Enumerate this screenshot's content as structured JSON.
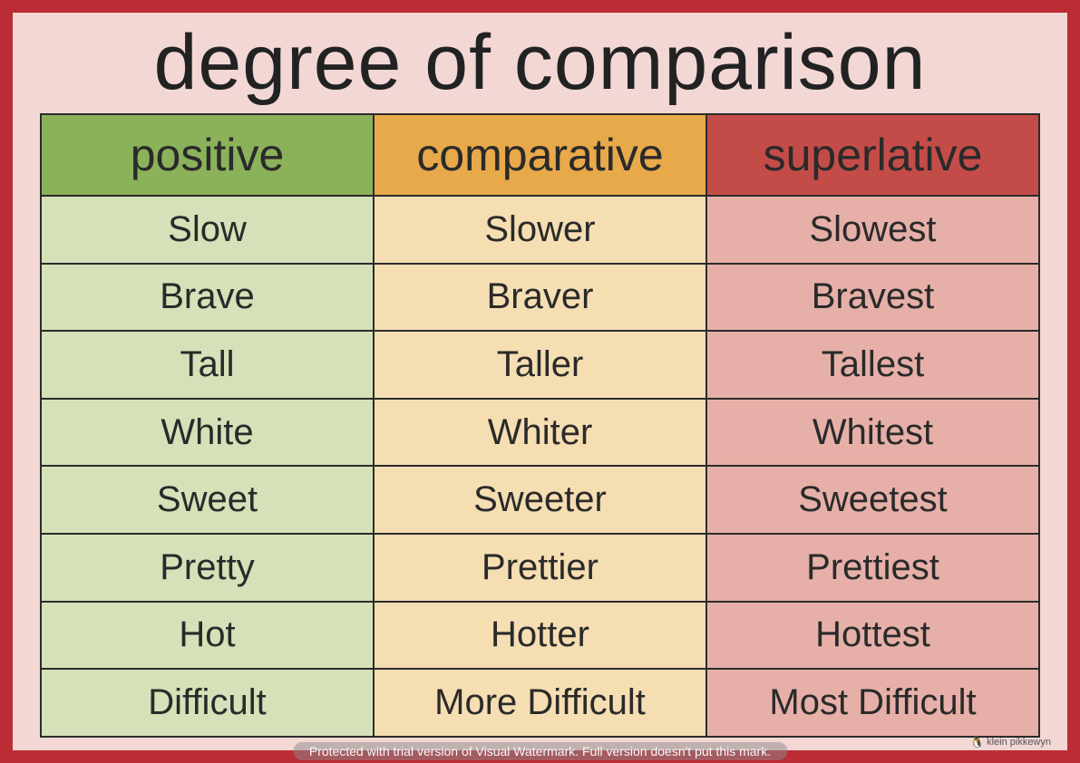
{
  "title": "degree of comparison",
  "columns": {
    "positive": {
      "label": "positive",
      "header_bg": "#8bb25a",
      "cell_bg": "#d5e1b8"
    },
    "comparative": {
      "label": "comparative",
      "header_bg": "#e8a94a",
      "cell_bg": "#f6deb3"
    },
    "superlative": {
      "label": "superlative",
      "header_bg": "#c44c48",
      "cell_bg": "#e6b0a8"
    }
  },
  "rows": [
    {
      "positive": "Slow",
      "comparative": "Slower",
      "superlative": "Slowest"
    },
    {
      "positive": "Brave",
      "comparative": "Braver",
      "superlative": "Bravest"
    },
    {
      "positive": "Tall",
      "comparative": "Taller",
      "superlative": "Tallest"
    },
    {
      "positive": "White",
      "comparative": "Whiter",
      "superlative": "Whitest"
    },
    {
      "positive": "Sweet",
      "comparative": "Sweeter",
      "superlative": "Sweetest"
    },
    {
      "positive": "Pretty",
      "comparative": "Prettier",
      "superlative": "Prettiest"
    },
    {
      "positive": "Hot",
      "comparative": "Hotter",
      "superlative": "Hottest"
    },
    {
      "positive": "Difficult",
      "comparative": "more difficult",
      "superlative": "most difficult"
    }
  ],
  "styling": {
    "outer_border_color": "#bc2c34",
    "panel_bg": "#f2d7d4",
    "cell_border_color": "#2b2b2b",
    "title_fontsize": 86,
    "header_fontsize": 50,
    "cell_fontsize": 40,
    "font_family": "Comic Sans / handwritten",
    "text_color": "#2a2a2a"
  },
  "watermark_text": "Protected with trial version of Visual Watermark. Full version doesn't put this mark.",
  "credit_text": "klein pikkewyn",
  "credit_icon": "🐧"
}
